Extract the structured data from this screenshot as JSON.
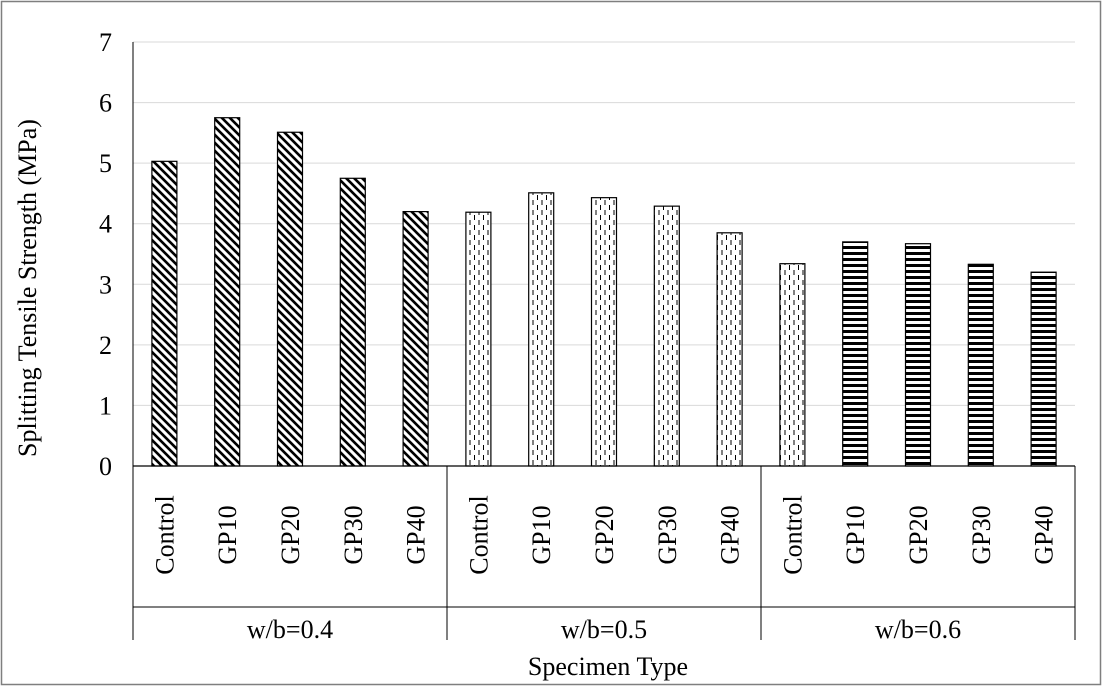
{
  "chart_data": {
    "type": "bar",
    "title": "",
    "xlabel": "Specimen Type",
    "ylabel": "Splitting Tensile Strength  (MPa)",
    "ylim": [
      0,
      7
    ],
    "yticks": [
      "0",
      "1",
      "2",
      "3",
      "4",
      "5",
      "6",
      "7"
    ],
    "grid": "horizontal",
    "legend": "none",
    "groups": [
      {
        "label": "w/b=0.4",
        "pattern": "diagonal-stripes",
        "categories": [
          "Control",
          "GP10",
          "GP20",
          "GP30",
          "GP40"
        ],
        "values": [
          5.03,
          5.75,
          5.51,
          4.75,
          4.2
        ]
      },
      {
        "label": "w/b=0.5",
        "pattern": "dashed-vertical",
        "categories": [
          "Control",
          "GP10",
          "GP20",
          "GP30",
          "GP40"
        ],
        "values": [
          4.19,
          4.51,
          4.43,
          4.29,
          3.85
        ]
      },
      {
        "label": "w/b=0.6",
        "pattern": "mixed",
        "categories": [
          "Control",
          "GP10",
          "GP20",
          "GP30",
          "GP40"
        ],
        "values": [
          3.34,
          3.7,
          3.67,
          3.33,
          3.2
        ],
        "bar_patterns": [
          "dashed-vertical",
          "horizontal-stripes",
          "horizontal-stripes",
          "horizontal-stripes",
          "horizontal-stripes"
        ]
      }
    ]
  }
}
